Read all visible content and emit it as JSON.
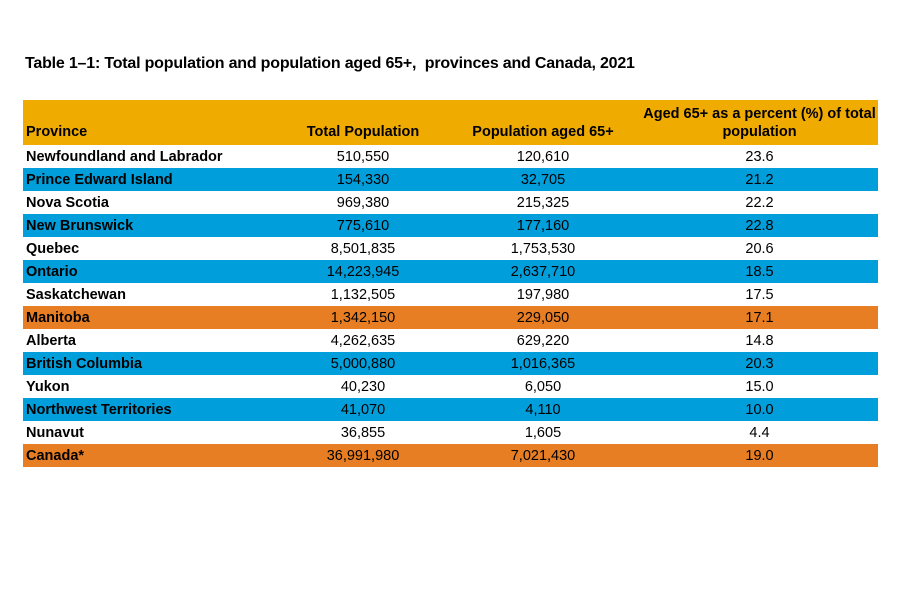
{
  "title": "Table 1–1: Total population and population aged 65+,  provinces and Canada, 2021",
  "colors": {
    "header_bg": "#F0AB00",
    "row_blue": "#009EDB",
    "row_orange": "#E87E23",
    "text": "#000000",
    "page_bg": "#FFFFFF"
  },
  "table": {
    "columns": [
      "Province",
      "Total Population",
      "Population aged 65+",
      "Aged 65+ as a percent (%) of total population"
    ],
    "rows": [
      {
        "province": "Newfoundland and Labrador",
        "total_population": "510,550",
        "population_aged_65_plus": "120,610",
        "percent_65_plus": "23.6",
        "highlight": "none"
      },
      {
        "province": "Prince Edward Island",
        "total_population": "154,330",
        "population_aged_65_plus": "32,705",
        "percent_65_plus": "21.2",
        "highlight": "blue"
      },
      {
        "province": "Nova Scotia",
        "total_population": "969,380",
        "population_aged_65_plus": "215,325",
        "percent_65_plus": "22.2",
        "highlight": "none"
      },
      {
        "province": "New Brunswick",
        "total_population": "775,610",
        "population_aged_65_plus": "177,160",
        "percent_65_plus": "22.8",
        "highlight": "blue"
      },
      {
        "province": "Quebec",
        "total_population": "8,501,835",
        "population_aged_65_plus": "1,753,530",
        "percent_65_plus": "20.6",
        "highlight": "none"
      },
      {
        "province": "Ontario",
        "total_population": "14,223,945",
        "population_aged_65_plus": "2,637,710",
        "percent_65_plus": "18.5",
        "highlight": "blue"
      },
      {
        "province": "Saskatchewan",
        "total_population": "1,132,505",
        "population_aged_65_plus": "197,980",
        "percent_65_plus": "17.5",
        "highlight": "none"
      },
      {
        "province": "Manitoba",
        "total_population": "1,342,150",
        "population_aged_65_plus": "229,050",
        "percent_65_plus": "17.1",
        "highlight": "orange"
      },
      {
        "province": "Alberta",
        "total_population": "4,262,635",
        "population_aged_65_plus": "629,220",
        "percent_65_plus": "14.8",
        "highlight": "none"
      },
      {
        "province": "British Columbia",
        "total_population": "5,000,880",
        "population_aged_65_plus": "1,016,365",
        "percent_65_plus": "20.3",
        "highlight": "blue"
      },
      {
        "province": "Yukon",
        "total_population": "40,230",
        "population_aged_65_plus": "6,050",
        "percent_65_plus": "15.0",
        "highlight": "none"
      },
      {
        "province": "Northwest Territories",
        "total_population": "41,070",
        "population_aged_65_plus": "4,110",
        "percent_65_plus": "10.0",
        "highlight": "blue"
      },
      {
        "province": "Nunavut",
        "total_population": "36,855",
        "population_aged_65_plus": "1,605",
        "percent_65_plus": "4.4",
        "highlight": "none"
      },
      {
        "province": "Canada*",
        "total_population": "36,991,980",
        "population_aged_65_plus": "7,021,430",
        "percent_65_plus": "19.0",
        "highlight": "orange"
      }
    ]
  },
  "chart_data": {
    "type": "table",
    "title": "Table 1–1: Total population and population aged 65+,  provinces and Canada, 2021",
    "columns": [
      "Province",
      "Total Population",
      "Population aged 65+",
      "Aged 65+ as a percent (%) of total population"
    ],
    "rows": [
      [
        "Newfoundland and Labrador",
        510550,
        120610,
        23.6
      ],
      [
        "Prince Edward Island",
        154330,
        32705,
        21.2
      ],
      [
        "Nova Scotia",
        969380,
        215325,
        22.2
      ],
      [
        "New Brunswick",
        775610,
        177160,
        22.8
      ],
      [
        "Quebec",
        8501835,
        1753530,
        20.6
      ],
      [
        "Ontario",
        14223945,
        2637710,
        18.5
      ],
      [
        "Saskatchewan",
        1132505,
        197980,
        17.5
      ],
      [
        "Manitoba",
        1342150,
        229050,
        17.1
      ],
      [
        "Alberta",
        4262635,
        629220,
        14.8
      ],
      [
        "British Columbia",
        5000880,
        1016365,
        20.3
      ],
      [
        "Yukon",
        40230,
        6050,
        15.0
      ],
      [
        "Northwest Territories",
        41070,
        4110,
        10.0
      ],
      [
        "Nunavut",
        36855,
        1605,
        4.4
      ],
      [
        "Canada*",
        36991980,
        7021430,
        19.0
      ]
    ],
    "row_highlights": [
      "none",
      "blue",
      "none",
      "blue",
      "none",
      "blue",
      "none",
      "orange",
      "none",
      "blue",
      "none",
      "blue",
      "none",
      "orange"
    ],
    "layout_hints": {
      "header_style": "amber band, bold, bottom-aligned",
      "value_alignment": "center",
      "province_alignment": "left, bold",
      "grid": "off"
    }
  }
}
